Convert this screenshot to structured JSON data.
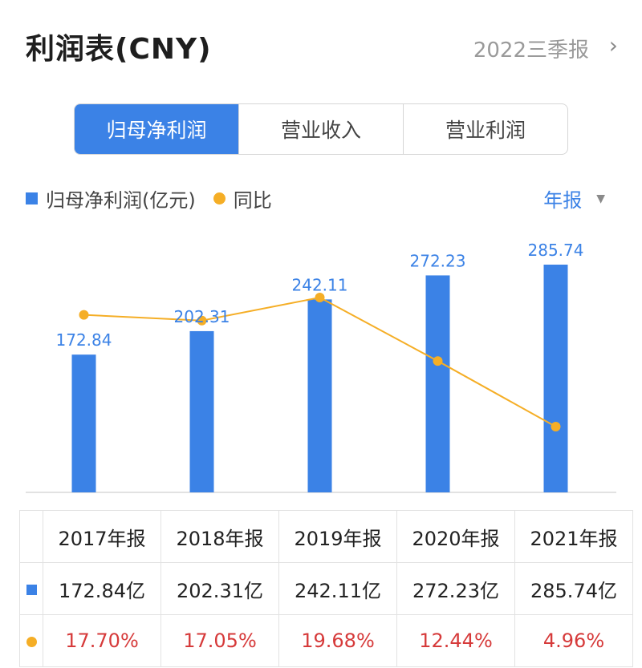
{
  "header": {
    "title": "利润表(CNY)",
    "period": "2022三季报",
    "chevron_icon": "chevron-right-icon"
  },
  "tabs": [
    {
      "label": "归母净利润",
      "active": true
    },
    {
      "label": "营业收入",
      "active": false
    },
    {
      "label": "营业利润",
      "active": false
    }
  ],
  "legend": {
    "bar_label": "归母净利润(亿元)",
    "line_label": "同比"
  },
  "report_type": {
    "label": "年报",
    "icon": "caret-down-icon"
  },
  "colors": {
    "bar": "#3b82e6",
    "line": "#f5ae26",
    "negative_text": "#d63a3a",
    "active_tab": "#3b82e6"
  },
  "chart_data": {
    "type": "bar",
    "categories": [
      "2017年报",
      "2018年报",
      "2019年报",
      "2020年报",
      "2021年报"
    ],
    "series": [
      {
        "name": "归母净利润(亿元)",
        "type": "bar",
        "values": [
          172.84,
          202.31,
          242.11,
          272.23,
          285.74
        ]
      },
      {
        "name": "同比",
        "type": "line",
        "values": [
          17.7,
          17.05,
          19.68,
          12.44,
          4.96
        ]
      }
    ],
    "data_labels": [
      "172.84",
      "202.31",
      "242.11",
      "272.23",
      "285.74"
    ],
    "ylim_bar": [
      0,
      285.74
    ],
    "ylim_line": [
      0,
      20
    ],
    "grid": false,
    "legend_position": "top-left"
  },
  "table": {
    "headers": [
      "2017年报",
      "2018年报",
      "2019年报",
      "2020年报",
      "2021年报"
    ],
    "values_row": [
      "172.84亿",
      "202.31亿",
      "242.11亿",
      "272.23亿",
      "285.74亿"
    ],
    "growth_row": [
      "17.70%",
      "17.05%",
      "19.68%",
      "12.44%",
      "4.96%"
    ]
  }
}
